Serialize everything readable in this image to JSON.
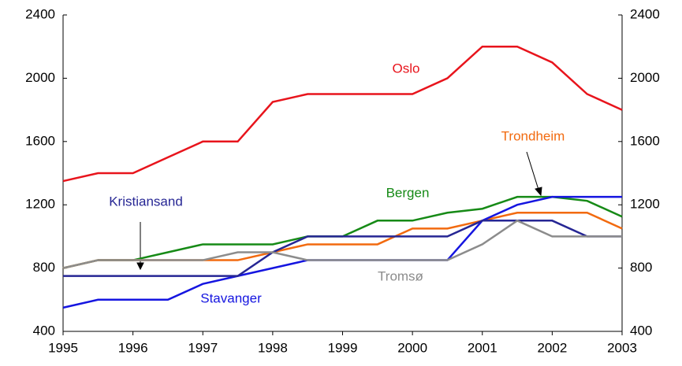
{
  "chart_data": {
    "type": "line",
    "x": [
      1995,
      1995.5,
      1996,
      1996.5,
      1997,
      1997.5,
      1998,
      1998.5,
      1999,
      1999.5,
      2000,
      2000.5,
      2001,
      2001.5,
      2002,
      2002.5,
      2003
    ],
    "series": [
      {
        "name": "Oslo",
        "color": "#e8141c",
        "values": [
          1350,
          1400,
          1400,
          1500,
          1600,
          1600,
          1850,
          1900,
          1900,
          1900,
          1900,
          2000,
          2200,
          2200,
          2100,
          1900,
          1800
        ]
      },
      {
        "name": "Bergen",
        "color": "#168a16",
        "values": [
          800,
          850,
          850,
          900,
          950,
          950,
          950,
          1000,
          1000,
          1100,
          1100,
          1150,
          1175,
          1250,
          1250,
          1225,
          1125
        ]
      },
      {
        "name": "Trondheim",
        "color": "#f26a0f",
        "values": [
          800,
          850,
          850,
          850,
          850,
          850,
          900,
          950,
          950,
          950,
          1050,
          1050,
          1100,
          1150,
          1150,
          1150,
          1050
        ]
      },
      {
        "name": "Stavanger",
        "color": "#1515e0",
        "values": [
          550,
          600,
          600,
          600,
          700,
          750,
          800,
          850,
          850,
          850,
          850,
          850,
          1100,
          1200,
          1250,
          1250,
          1250
        ]
      },
      {
        "name": "Kristiansand",
        "color": "#262694",
        "values": [
          750,
          750,
          750,
          750,
          750,
          750,
          900,
          1000,
          1000,
          1000,
          1000,
          1000,
          1100,
          1100,
          1100,
          1000,
          1000
        ]
      },
      {
        "name": "Tromsø",
        "color": "#8c8c8c",
        "values": [
          800,
          850,
          850,
          850,
          850,
          900,
          900,
          850,
          850,
          850,
          850,
          850,
          950,
          1100,
          1000,
          1000,
          1000
        ]
      }
    ],
    "xlim": [
      1995,
      2003
    ],
    "xticks": [
      1995,
      1996,
      1997,
      1998,
      1999,
      2000,
      2001,
      2002,
      2003
    ],
    "ylim": [
      400,
      2400
    ],
    "yticks": [
      400,
      800,
      1200,
      1600,
      2000,
      2400
    ],
    "y2lim": [
      400,
      2400
    ],
    "y2ticks": [
      400,
      800,
      1200,
      1600,
      2000,
      2400
    ]
  }
}
